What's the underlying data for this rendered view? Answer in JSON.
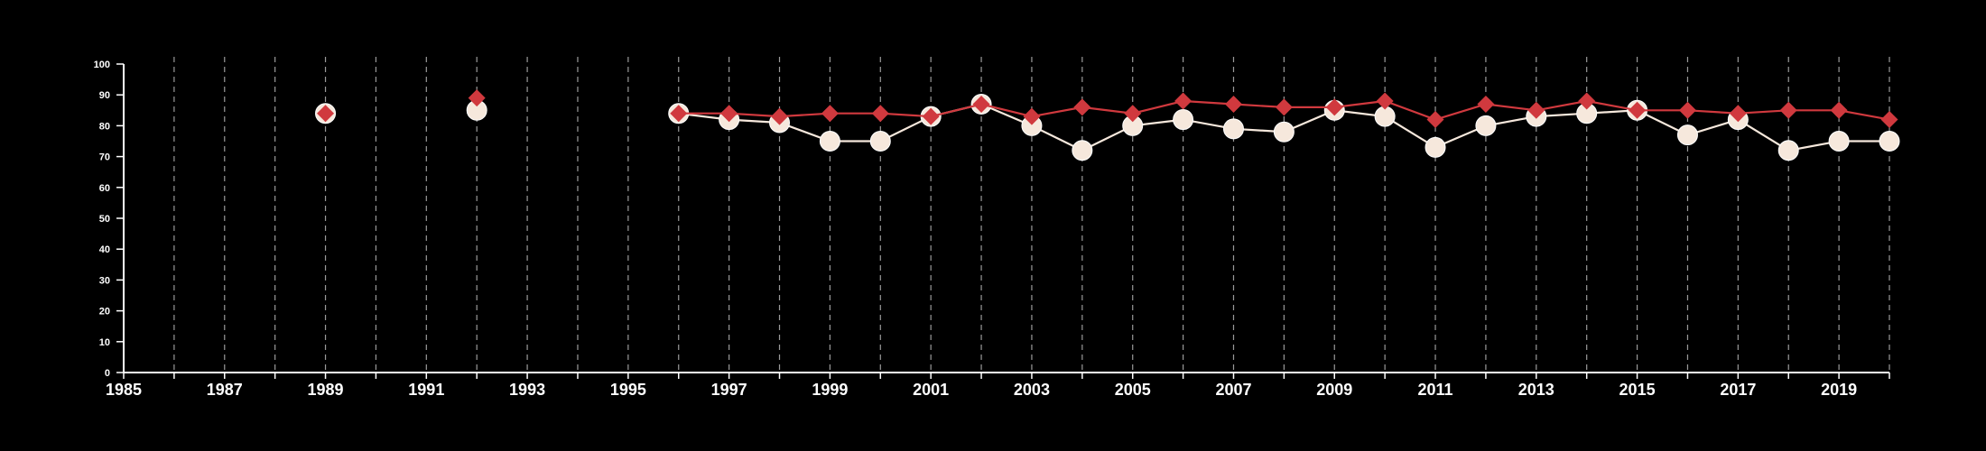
{
  "chart_data": {
    "type": "line",
    "title": "",
    "xlabel": "",
    "ylabel": "",
    "xlim": [
      1985,
      2020
    ],
    "ylim": [
      0,
      100
    ],
    "x_ticks": [
      1985,
      1987,
      1989,
      1991,
      1993,
      1995,
      1997,
      1999,
      2001,
      2003,
      2005,
      2007,
      2009,
      2011,
      2013,
      2015,
      2017,
      2019
    ],
    "x_tick_labels": [
      "1985",
      "1987",
      "1989",
      "1991",
      "1993",
      "1995",
      "1997",
      "1999",
      "2001",
      "2003",
      "2005",
      "2007",
      "2009",
      "2011",
      "2013",
      "2015",
      "2017",
      "2019"
    ],
    "y_ticks": [
      0,
      10,
      20,
      30,
      40,
      50,
      60,
      70,
      80,
      90,
      100
    ],
    "y_tick_labels": [
      "0",
      "10",
      "20",
      "30",
      "40",
      "50",
      "60",
      "70",
      "80",
      "90",
      "100"
    ],
    "grid": "vertical dashed, yearly from 1986 to 2020",
    "series": [
      {
        "marker": "circle",
        "color": "#f6e8dc",
        "points": [
          [
            1989,
            84
          ],
          [
            1992,
            85
          ],
          [
            1996,
            84
          ],
          [
            1997,
            82
          ],
          [
            1998,
            81
          ],
          [
            1999,
            75
          ],
          [
            2000,
            75
          ],
          [
            2001,
            83
          ],
          [
            2002,
            87
          ],
          [
            2003,
            80
          ],
          [
            2004,
            72
          ],
          [
            2005,
            80
          ],
          [
            2006,
            82
          ],
          [
            2007,
            79
          ],
          [
            2008,
            78
          ],
          [
            2009,
            85
          ],
          [
            2010,
            83
          ],
          [
            2011,
            73
          ],
          [
            2012,
            80
          ],
          [
            2013,
            83
          ],
          [
            2014,
            84
          ],
          [
            2015,
            85
          ],
          [
            2016,
            77
          ],
          [
            2017,
            82
          ],
          [
            2018,
            72
          ],
          [
            2019,
            75
          ],
          [
            2020,
            75
          ]
        ]
      },
      {
        "marker": "diamond",
        "color": "#d0393e",
        "points": [
          [
            1989,
            84
          ],
          [
            1992,
            89
          ],
          [
            1996,
            84
          ],
          [
            1997,
            84
          ],
          [
            1998,
            83
          ],
          [
            1999,
            84
          ],
          [
            2000,
            84
          ],
          [
            2001,
            83
          ],
          [
            2002,
            87
          ],
          [
            2003,
            83
          ],
          [
            2004,
            86
          ],
          [
            2005,
            84
          ],
          [
            2006,
            88
          ],
          [
            2007,
            87
          ],
          [
            2008,
            86
          ],
          [
            2009,
            86
          ],
          [
            2010,
            88
          ],
          [
            2011,
            82
          ],
          [
            2012,
            87
          ],
          [
            2013,
            85
          ],
          [
            2014,
            88
          ],
          [
            2015,
            85
          ],
          [
            2016,
            85
          ],
          [
            2017,
            84
          ],
          [
            2018,
            85
          ],
          [
            2019,
            85
          ],
          [
            2020,
            82
          ]
        ]
      }
    ]
  }
}
